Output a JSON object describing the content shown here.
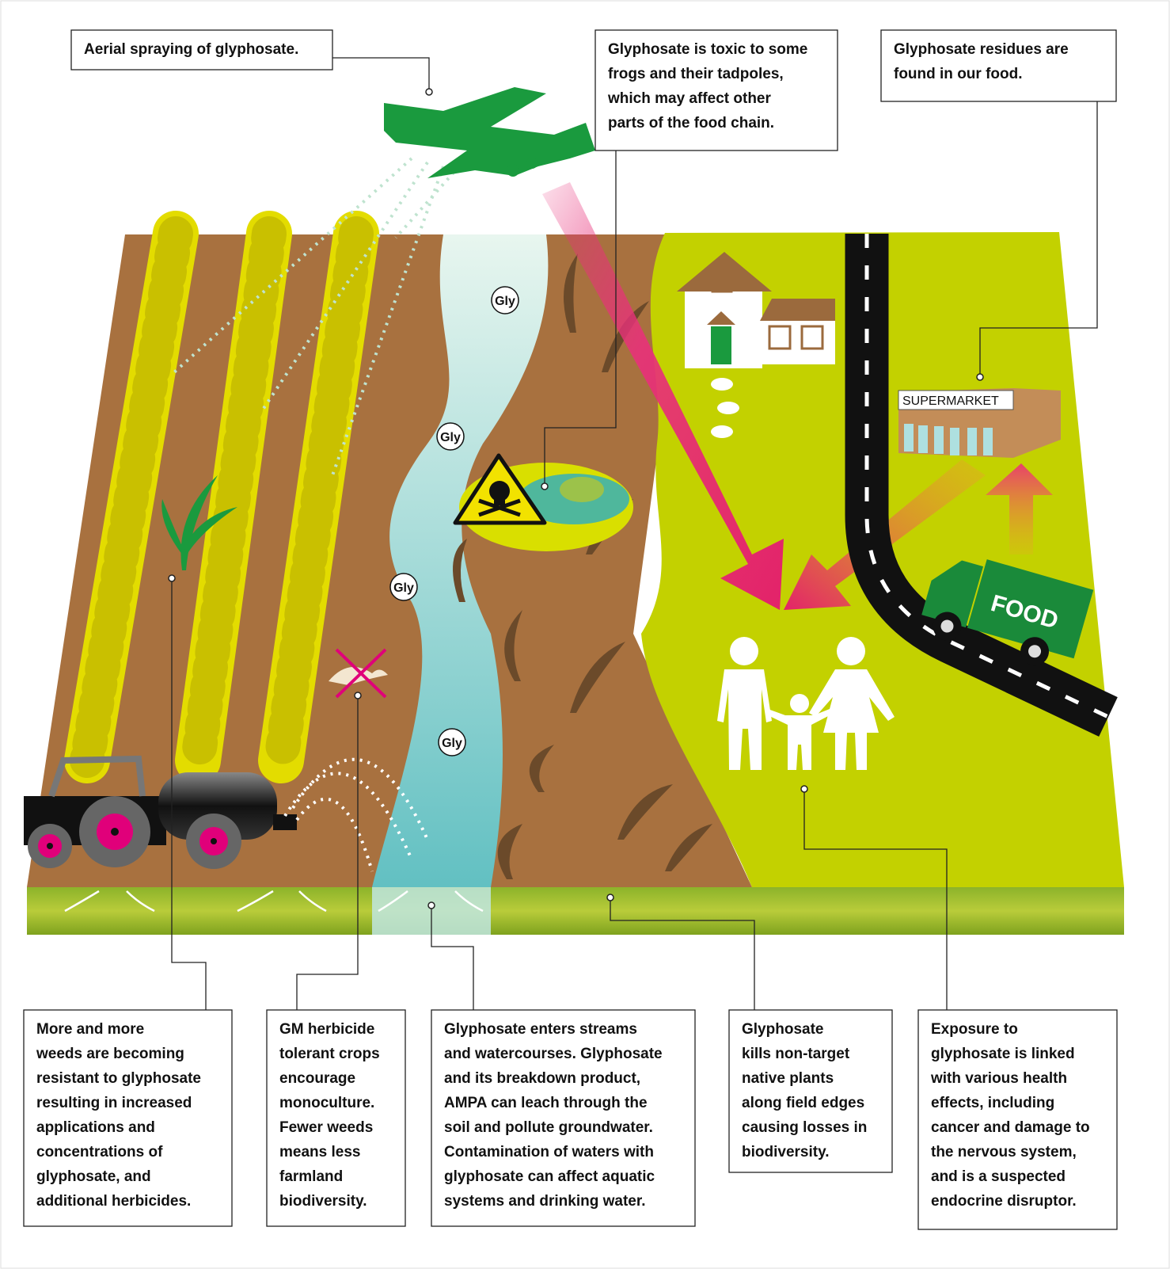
{
  "callouts": [
    {
      "lines": [
        "Aerial spraying of glyphosate."
      ]
    },
    {
      "lines": [
        "Glyphosate is toxic to some",
        "frogs and their tadpoles,",
        "which may affect other",
        "parts of the food chain."
      ]
    },
    {
      "lines": [
        "Glyphosate residues are",
        "found in our food."
      ]
    },
    {
      "lines": [
        "More and more",
        "weeds are becoming",
        "resistant to glyphosate",
        "resulting in increased",
        "applications and",
        "concentrations of",
        "glyphosate, and",
        "additional herbicides."
      ]
    },
    {
      "lines": [
        "GM herbicide",
        "tolerant crops",
        "encourage",
        "monoculture.",
        "Fewer weeds",
        "means less",
        "farmland",
        "biodiversity."
      ]
    },
    {
      "lines": [
        "Glyphosate enters streams",
        "and watercourses. Glyphosate",
        "and its breakdown product,",
        "AMPA can leach through the",
        "soil and pollute groundwater.",
        "Contamination of waters with",
        "glyphosate can affect aquatic",
        "systems and drinking water."
      ]
    },
    {
      "lines": [
        "Glyphosate",
        "kills non-target",
        "native plants",
        "along field edges",
        "causing losses in",
        "biodiversity."
      ]
    },
    {
      "lines": [
        "Exposure to",
        "glyphosate is linked",
        "with various health",
        "effects, including",
        "cancer and damage to",
        "the nervous system,",
        "and is a suspected",
        "endocrine disruptor."
      ]
    }
  ],
  "labels": {
    "gly": [
      "Gly",
      "Gly",
      "Gly",
      "Gly"
    ],
    "supermarket": "SUPERMARKET",
    "food": "FOOD"
  }
}
